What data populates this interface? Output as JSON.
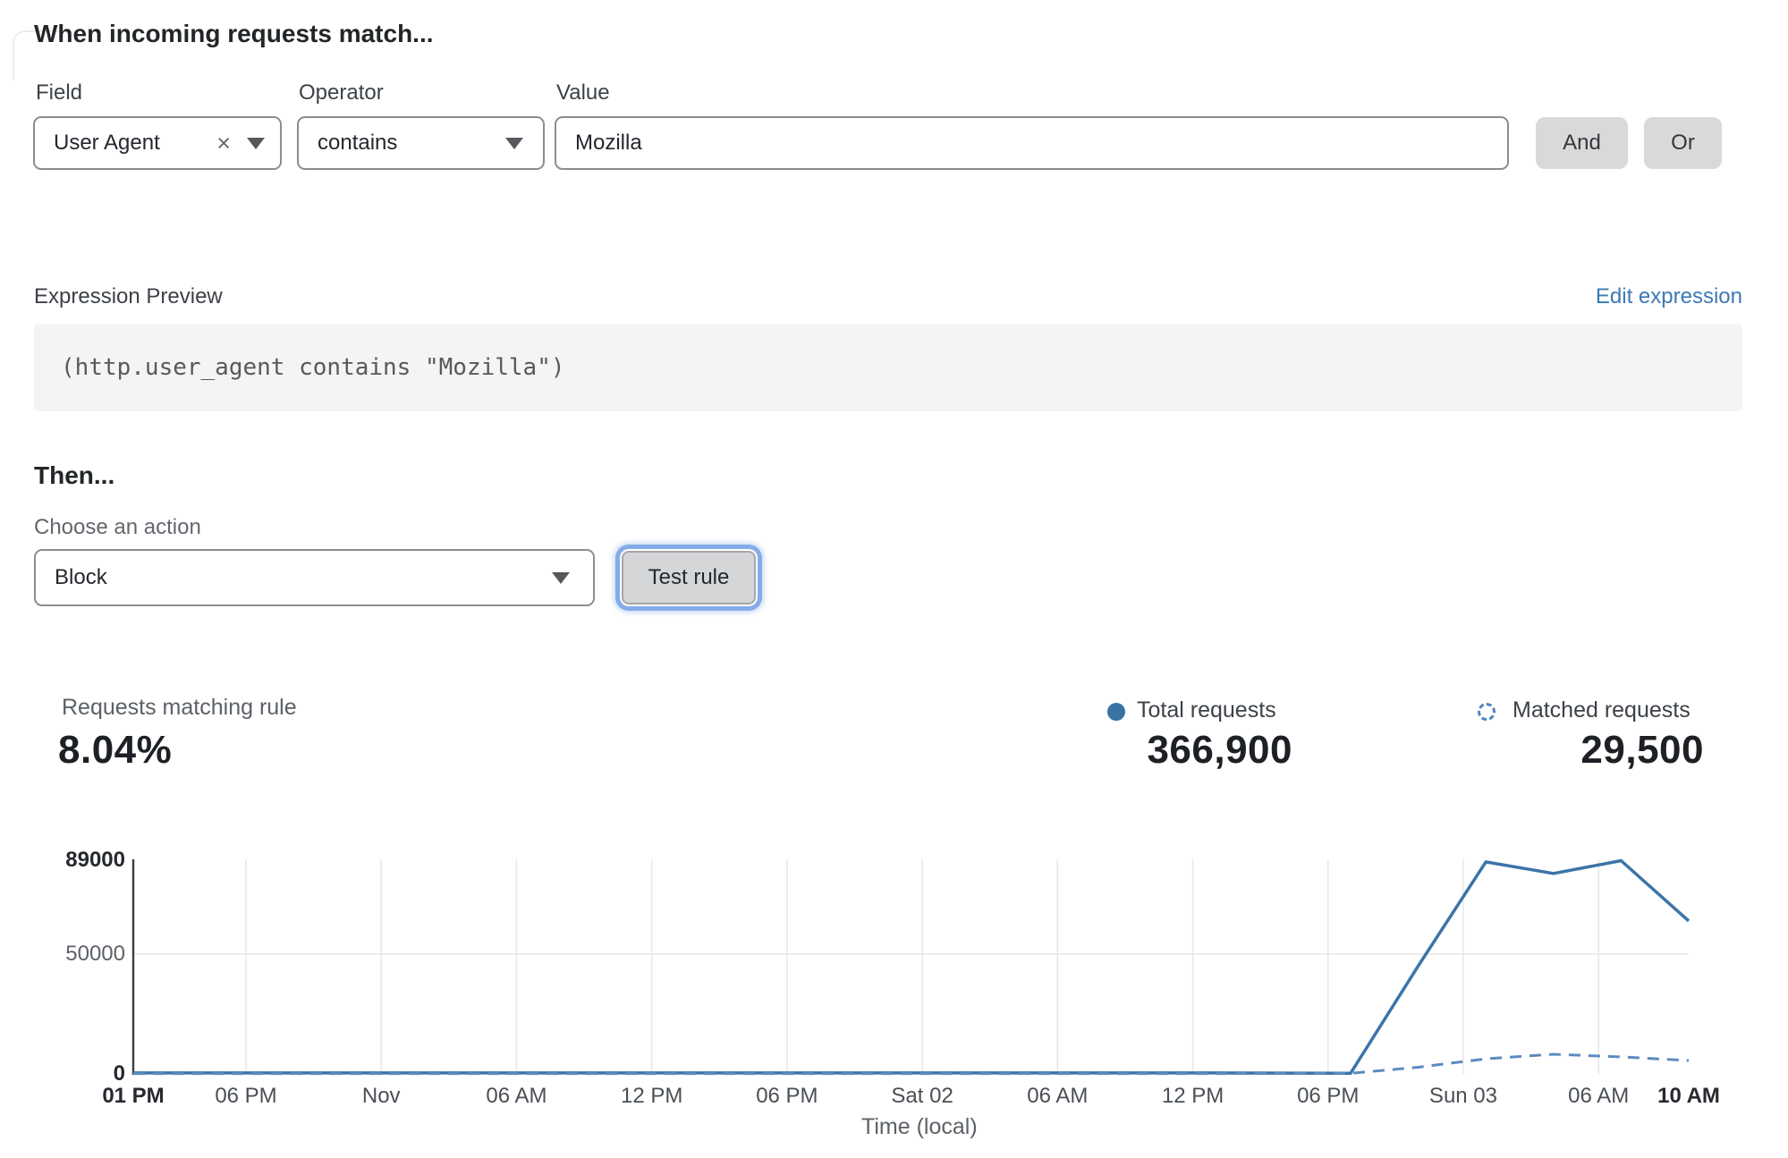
{
  "match_builder": {
    "heading": "When incoming requests match...",
    "field": {
      "label": "Field",
      "value": "User Agent",
      "clear_icon": "×"
    },
    "operator": {
      "label": "Operator",
      "value": "contains"
    },
    "value": {
      "label": "Value",
      "value": "Mozilla"
    },
    "and_label": "And",
    "or_label": "Or"
  },
  "expression": {
    "label": "Expression Preview",
    "edit_link": "Edit expression",
    "code": "(http.user_agent contains \"Mozilla\")"
  },
  "action": {
    "heading": "Then...",
    "choose_label": "Choose an action",
    "selected": "Block",
    "test_button": "Test rule"
  },
  "stats": {
    "matching": {
      "label": "Requests matching rule",
      "value": "8.04%"
    },
    "total": {
      "label": "Total requests",
      "value": "366,900",
      "color": "#3873a5"
    },
    "matched": {
      "label": "Matched requests",
      "value": "29,500",
      "color": "#4d86c4"
    }
  },
  "chart_data": {
    "type": "line",
    "xlabel": "Time (local)",
    "x_ticks": [
      "01 PM",
      "06 PM",
      "Nov",
      "06 AM",
      "12 PM",
      "06 PM",
      "Sat 02",
      "06 AM",
      "12 PM",
      "06 PM",
      "Sun 03",
      "06 AM",
      "10 AM"
    ],
    "x_tick_hours": [
      0,
      5,
      11,
      17,
      23,
      29,
      35,
      41,
      47,
      53,
      59,
      65,
      69
    ],
    "x_axis_span_hours": 69,
    "y_ticks": [
      "89000",
      "50000",
      "0"
    ],
    "ylim": [
      0,
      89000
    ],
    "grid": "on",
    "legend_position": "above-right",
    "series": [
      {
        "name": "Total requests",
        "style": "solid",
        "color": "#3b74a8",
        "points": [
          [
            0,
            400
          ],
          [
            6,
            400
          ],
          [
            12,
            400
          ],
          [
            18,
            400
          ],
          [
            24,
            400
          ],
          [
            30,
            400
          ],
          [
            36,
            400
          ],
          [
            42,
            400
          ],
          [
            48,
            400
          ],
          [
            54,
            300
          ],
          [
            57,
            45000
          ],
          [
            60,
            88300
          ],
          [
            63,
            83500
          ],
          [
            66,
            88800
          ],
          [
            69,
            63700
          ]
        ]
      },
      {
        "name": "Matched requests",
        "style": "dashed",
        "color": "#5b8cc0",
        "points": [
          [
            0,
            150
          ],
          [
            6,
            150
          ],
          [
            12,
            150
          ],
          [
            18,
            150
          ],
          [
            24,
            150
          ],
          [
            30,
            150
          ],
          [
            36,
            150
          ],
          [
            42,
            150
          ],
          [
            48,
            150
          ],
          [
            54,
            250
          ],
          [
            57,
            2800
          ],
          [
            60,
            6300
          ],
          [
            63,
            8200
          ],
          [
            66,
            7100
          ],
          [
            69,
            5600
          ]
        ]
      }
    ]
  }
}
